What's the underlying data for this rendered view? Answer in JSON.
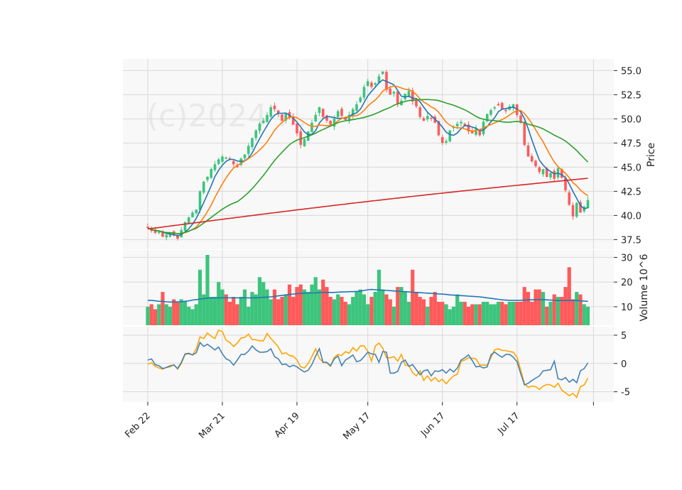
{
  "watermark": "(c)2024 ...",
  "colors": {
    "up": "#3cc47c",
    "down": "#ff5a5a",
    "ma1": "#1f77b4",
    "ma2": "#ff7f0e",
    "ma3": "#2ca02c",
    "ma4": "#d62728",
    "volume_ma": "#1f77b4",
    "ind1": "#4682b4",
    "ind2": "#ffa500",
    "panel_bg": "#f8f8f8",
    "grid": "#d8d8d8"
  },
  "chart_data": {
    "type": "candlestick",
    "x_tick_labels": [
      "Feb 22",
      "Mar 21",
      "Apr 19",
      "May 17",
      "Jun 17",
      "Jul 17"
    ],
    "x_tick_index": [
      0,
      20,
      40,
      59,
      79,
      99
    ],
    "n_bars": 119,
    "price_panel": {
      "ylabel": "Price",
      "yticks": [
        "55.0",
        "52.5",
        "50.0",
        "47.5",
        "45.0",
        "42.5",
        "40.0",
        "37.5"
      ],
      "ylim": [
        36.5,
        56.2
      ],
      "closes": [
        38.7,
        38.4,
        38.2,
        38.3,
        37.8,
        38.0,
        38.1,
        37.9,
        37.6,
        38.5,
        39.3,
        39.8,
        40.3,
        40.6,
        42.5,
        43.5,
        44.0,
        44.8,
        45.3,
        45.8,
        46.1,
        46.0,
        45.8,
        45.3,
        45.0,
        45.9,
        46.3,
        47.2,
        48.0,
        48.8,
        49.5,
        49.8,
        50.4,
        51.2,
        51.0,
        50.5,
        49.8,
        50.5,
        50.1,
        49.4,
        48.5,
        47.3,
        47.9,
        48.7,
        49.6,
        50.4,
        51.2,
        50.2,
        49.8,
        49.4,
        50.0,
        50.8,
        50.3,
        49.9,
        50.4,
        51.0,
        51.5,
        52.2,
        53.3,
        53.9,
        53.3,
        53.7,
        54.4,
        54.9,
        53.0,
        52.5,
        52.8,
        51.5,
        51.9,
        52.6,
        52.9,
        51.8,
        51.3,
        50.2,
        49.8,
        50.3,
        50.0,
        49.6,
        48.3,
        47.5,
        47.7,
        48.8,
        49.2,
        49.5,
        49.7,
        49.3,
        48.7,
        48.5,
        49.0,
        48.3,
        49.7,
        50.5,
        50.9,
        51.2,
        51.4,
        51.0,
        50.8,
        51.3,
        51.5,
        50.4,
        49.6,
        47.3,
        46.1,
        45.6,
        45.1,
        44.5,
        44.8,
        44.0,
        44.4,
        43.8,
        44.9,
        43.9,
        42.6,
        41.1,
        39.9,
        41.3,
        40.3,
        40.9,
        41.6
      ]
    },
    "volume_panel": {
      "ylabel": "Volume  10^6",
      "yticks": [
        "30",
        "20",
        "10"
      ],
      "ylim": [
        2.5,
        33
      ],
      "volumes": [
        10,
        11,
        9,
        11,
        16,
        11,
        10,
        13,
        12,
        13,
        12,
        10,
        9,
        11,
        25,
        15,
        31,
        14,
        14,
        20,
        17,
        15,
        12,
        14,
        11,
        14,
        17,
        10,
        16,
        15,
        22,
        20,
        17,
        13,
        17,
        13,
        14,
        15,
        19,
        14,
        18,
        19,
        17,
        16,
        19,
        22,
        17,
        21,
        18,
        14,
        13,
        15,
        14,
        12,
        11,
        14,
        16,
        17,
        15,
        11,
        14,
        16,
        25,
        17,
        15,
        13,
        10,
        18,
        18,
        16,
        12,
        25,
        16,
        14,
        13,
        10,
        14,
        16,
        12,
        12,
        11,
        9,
        10,
        15,
        12,
        12,
        10,
        11,
        11,
        11,
        12,
        12,
        11,
        11,
        12,
        12,
        11,
        12,
        12,
        12,
        12,
        18,
        16,
        12,
        17,
        17,
        16,
        10,
        12,
        15,
        14,
        14,
        18,
        26,
        13,
        16,
        15,
        11,
        10
      ],
      "volume_ma": [
        12.6,
        12.6,
        12.4,
        12.2,
        12.2,
        12.0,
        11.9,
        11.9,
        12.0,
        12.0,
        12.2,
        12.4,
        12.7,
        12.9,
        13.1,
        13.3,
        13.5,
        13.6,
        13.6,
        13.6,
        13.6,
        13.6,
        13.6,
        13.6,
        13.6,
        13.6,
        13.6,
        13.6,
        13.6,
        13.6,
        13.7,
        13.8,
        13.9,
        14.0,
        14.2,
        14.4,
        14.6,
        14.8,
        15.0,
        15.1,
        15.3,
        15.4,
        15.5,
        15.6,
        15.6,
        15.6,
        15.7,
        15.8,
        15.8,
        15.8,
        15.8,
        15.9,
        16.0,
        16.0,
        16.1,
        16.1,
        16.2,
        16.3,
        16.6,
        16.9,
        17.0,
        16.9,
        16.8,
        16.7,
        16.6,
        16.5,
        16.4,
        16.3,
        16.2,
        16.1,
        16.0,
        15.9,
        15.8,
        15.7,
        15.6,
        15.5,
        15.4,
        15.3,
        15.2,
        15.1,
        15.0,
        14.8,
        14.7,
        14.6,
        14.5,
        14.4,
        14.3,
        14.2,
        14.1,
        14.0,
        13.8,
        13.6,
        13.4,
        13.2,
        13.0,
        12.8,
        12.7,
        12.6,
        12.6,
        12.6,
        12.6,
        12.7,
        12.8,
        12.8,
        12.9,
        12.9,
        12.9,
        12.8,
        12.7,
        12.6,
        12.5,
        12.5,
        12.5,
        12.6,
        12.6,
        12.5,
        12.4,
        12.3,
        12.2
      ]
    },
    "indicator_panel": {
      "yticks": [
        "5",
        "0",
        "-5"
      ],
      "ylim": [
        -6.8,
        6.5
      ],
      "line1": [
        0.6,
        0.8,
        -0.2,
        -0.4,
        -0.9,
        -0.7,
        -0.4,
        -0.3,
        -0.9,
        0.2,
        1.7,
        1.8,
        1.5,
        1.9,
        3.7,
        3.0,
        3.4,
        2.9,
        2.4,
        2.9,
        1.7,
        0.8,
        0.5,
        -0.3,
        0.6,
        1.6,
        1.6,
        2.2,
        3.1,
        2.4,
        2.0,
        2.0,
        2.1,
        2.6,
        1.2,
        0.8,
        -0.2,
        -0.1,
        -0.6,
        -0.3,
        -0.6,
        -1.1,
        -1.5,
        -1.2,
        -0.2,
        1.3,
        2.6,
        0.2,
        0.2,
        -0.4,
        0.8,
        1.3,
        -0.4,
        0.6,
        1.0,
        1.5,
        0.3,
        0.5,
        1.2,
        2.0,
        1.7,
        1.6,
        0.2,
        2.1,
        2.0,
        -1.7,
        -1.7,
        -1.4,
        0.2,
        0.6,
        -0.5,
        -0.2,
        -1.1,
        -2.0,
        -1.3,
        -1.1,
        -2.2,
        -1.3,
        -1.4,
        -1.1,
        -1.7,
        -1.0,
        -1.5,
        -0.8,
        0.6,
        1.0,
        1.5,
        0.5,
        -0.6,
        -0.5,
        -0.8,
        -0.6,
        1.5,
        2.0,
        1.5,
        1.1,
        1.6,
        1.6,
        1.1,
        0.3,
        -1.8,
        -3.8,
        -3.5,
        -3.0,
        -2.6,
        -2.2,
        -1.3,
        -1.2,
        -1.1,
        0.4,
        -2.7,
        -2.9,
        -2.5,
        -3.3,
        -2.8,
        -3.4,
        -1.3,
        -0.9,
        0.1
      ],
      "line2": [
        -0.1,
        0.1,
        -0.5,
        -0.8,
        -1.0,
        -0.7,
        -0.6,
        -0.2,
        -1.0,
        0.0,
        1.6,
        1.7,
        1.5,
        2.6,
        4.7,
        4.4,
        5.4,
        4.8,
        4.4,
        5.9,
        5.6,
        4.1,
        3.7,
        3.0,
        3.6,
        4.5,
        4.6,
        5.2,
        4.2,
        4.2,
        4.0,
        4.0,
        5.3,
        4.4,
        3.7,
        2.9,
        1.7,
        1.9,
        1.4,
        1.3,
        0.6,
        -0.6,
        -0.8,
        0.0,
        1.2,
        2.6,
        0.9,
        0.2,
        0.1,
        -0.5,
        1.1,
        1.6,
        1.4,
        2.1,
        1.8,
        2.8,
        2.2,
        3.1,
        3.1,
        2.1,
        0.4,
        3.1,
        3.6,
        2.7,
        1.0,
        1.0,
        1.2,
        0.4,
        1.6,
        -0.3,
        -0.4,
        -1.6,
        -2.2,
        -1.3,
        -3.0,
        -2.2,
        -3.1,
        -2.5,
        -3.2,
        -2.8,
        -3.6,
        -2.8,
        -2.2,
        -1.9,
        0.4,
        0.6,
        1.0,
        0.9,
        0.8,
        -0.3,
        -0.3,
        -0.3,
        1.0,
        2.4,
        2.6,
        2.3,
        2.3,
        2.1,
        2.0,
        1.1,
        -1.2,
        -3.6,
        -4.2,
        -4.0,
        -4.1,
        -4.6,
        -4.0,
        -3.7,
        -3.8,
        -4.2,
        -3.5,
        -4.7,
        -5.2,
        -5.7,
        -5.3,
        -6.0,
        -4.1,
        -3.8,
        -2.6
      ]
    }
  }
}
